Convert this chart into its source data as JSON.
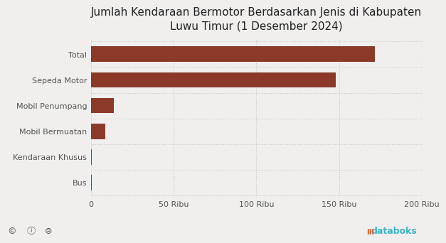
{
  "title": "Jumlah Kendaraan Bermotor Berdasarkan Jenis di Kabupaten\nLuwu Timur (1 Desember 2024)",
  "categories": [
    "Bus",
    "Kendaraan Khusus",
    "Mobil Bermuatan",
    "Mobil Penumpang",
    "Sepeda Motor",
    "Total"
  ],
  "values": [
    500,
    700,
    8500,
    14000,
    148000,
    171500
  ],
  "bar_color": "#8B3A2A",
  "background_color": "#f0efee",
  "xlim": [
    0,
    200000
  ],
  "xticks": [
    0,
    50000,
    100000,
    150000,
    200000
  ],
  "xtick_labels": [
    "0",
    "50 Ribu",
    "100 Ribu",
    "150 Ribu",
    "200 Ribu"
  ],
  "title_fontsize": 11,
  "tick_fontsize": 8,
  "ylabel_fontsize": 8,
  "footer_left": "© ⓘ ⊜",
  "footer_right_icon_color": "#e8652a",
  "footer_right_text_color": "#3ab5c6",
  "footer_right_label": "databoks"
}
